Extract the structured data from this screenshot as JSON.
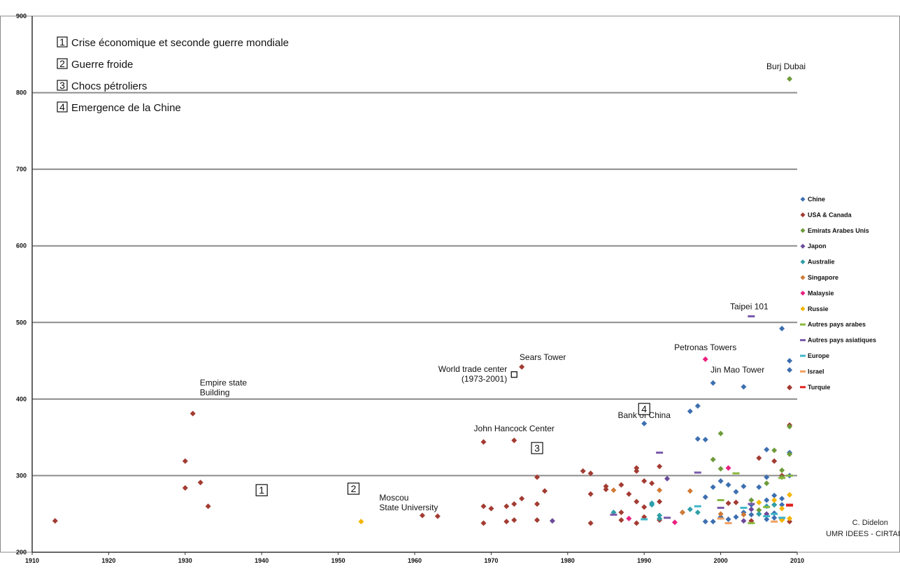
{
  "chart_data": {
    "type": "scatter",
    "xlim": [
      1910,
      2010
    ],
    "ylim": [
      200,
      900
    ],
    "x_ticks": [
      "1910",
      "1920",
      "1930",
      "1940",
      "1950",
      "1960",
      "1970",
      "1980",
      "1990",
      "2000",
      "2010"
    ],
    "y_ticks": [
      "200",
      "300",
      "400",
      "500",
      "600",
      "700",
      "800",
      "900"
    ],
    "grid": "horizontal",
    "legend_position": "right",
    "periods": [
      {
        "number": "1",
        "label": "Crise économique et seconde guerre mondiale",
        "x": 1940,
        "y": 281
      },
      {
        "number": "2",
        "label": "Guerre froide",
        "x": 1952,
        "y": 283
      },
      {
        "number": "3",
        "label": "Chocs pétroliers",
        "x": 1976,
        "y": 336
      },
      {
        "number": "4",
        "label": "Emergence de la Chine",
        "x": 1990,
        "y": 387
      }
    ],
    "series": [
      {
        "name": "Chine",
        "color": "#3d6fb0",
        "marker": "diamond",
        "points": [
          [
            1990,
            368
          ],
          [
            1996,
            384
          ],
          [
            1997,
            391
          ],
          [
            1997,
            348
          ],
          [
            1998,
            347
          ],
          [
            1999,
            421
          ],
          [
            2003,
            416
          ],
          [
            2008,
            492
          ],
          [
            2009,
            450
          ],
          [
            2009,
            438
          ],
          [
            2009,
            330
          ],
          [
            2009,
            300
          ],
          [
            1998,
            272
          ],
          [
            1999,
            285
          ],
          [
            2000,
            293
          ],
          [
            2001,
            288
          ],
          [
            2002,
            279
          ],
          [
            2003,
            286
          ],
          [
            2004,
            262
          ],
          [
            2005,
            285
          ],
          [
            2006,
            334
          ],
          [
            2006,
            298
          ],
          [
            2007,
            274
          ],
          [
            2008,
            270
          ],
          [
            2008,
            262
          ],
          [
            2005,
            250
          ],
          [
            2006,
            243
          ],
          [
            2007,
            245
          ],
          [
            2004,
            249
          ],
          [
            2003,
            252
          ],
          [
            2002,
            246
          ],
          [
            2001,
            243
          ],
          [
            2000,
            246
          ],
          [
            1999,
            240
          ],
          [
            1998,
            240
          ],
          [
            2006,
            268
          ],
          [
            2007,
            251
          ],
          [
            2008,
            243
          ]
        ]
      },
      {
        "name": "USA & Canada",
        "color": "#a23b32",
        "marker": "diamond",
        "points": [
          [
            1913,
            241
          ],
          [
            1930,
            319
          ],
          [
            1930,
            284
          ],
          [
            1931,
            381
          ],
          [
            1932,
            291
          ],
          [
            1933,
            260
          ],
          [
            1961,
            248
          ],
          [
            1963,
            247
          ],
          [
            1969,
            344
          ],
          [
            1969,
            260
          ],
          [
            1969,
            238
          ],
          [
            1970,
            257
          ],
          [
            1972,
            260
          ],
          [
            1972,
            240
          ],
          [
            1973,
            346
          ],
          [
            1973,
            263
          ],
          [
            1973,
            242
          ],
          [
            1974,
            442
          ],
          [
            1974,
            270
          ],
          [
            1976,
            298
          ],
          [
            1976,
            263
          ],
          [
            1976,
            242
          ],
          [
            1977,
            280
          ],
          [
            1982,
            306
          ],
          [
            1983,
            303
          ],
          [
            1983,
            276
          ],
          [
            1983,
            238
          ],
          [
            1985,
            286
          ],
          [
            1985,
            282
          ],
          [
            1987,
            288
          ],
          [
            1987,
            252
          ],
          [
            1987,
            242
          ],
          [
            1988,
            276
          ],
          [
            1989,
            310
          ],
          [
            1989,
            306
          ],
          [
            1989,
            266
          ],
          [
            1989,
            238
          ],
          [
            1990,
            293
          ],
          [
            1990,
            259
          ],
          [
            1990,
            246
          ],
          [
            1991,
            290
          ],
          [
            1992,
            312
          ],
          [
            1992,
            266
          ],
          [
            1992,
            242
          ],
          [
            2001,
            264
          ],
          [
            2002,
            265
          ],
          [
            2004,
            241
          ],
          [
            2005,
            323
          ],
          [
            2007,
            319
          ],
          [
            2008,
            300
          ],
          [
            2009,
            415
          ],
          [
            2009,
            366
          ],
          [
            2009,
            240
          ]
        ]
      },
      {
        "name": "Emirats Arabes Unis",
        "color": "#6e9b3a",
        "marker": "diamond",
        "points": [
          [
            2009,
            818
          ],
          [
            2000,
            355
          ],
          [
            1999,
            321
          ],
          [
            2000,
            309
          ],
          [
            2004,
            268
          ],
          [
            2006,
            290
          ],
          [
            2007,
            333
          ],
          [
            2008,
            307
          ],
          [
            2008,
            298
          ],
          [
            2009,
            364
          ],
          [
            2009,
            328
          ],
          [
            2005,
            255
          ],
          [
            2007,
            262
          ]
        ]
      },
      {
        "name": "Japon",
        "color": "#6a4a9a",
        "marker": "diamond",
        "points": [
          [
            1978,
            241
          ],
          [
            1993,
            296
          ],
          [
            1995,
            252
          ],
          [
            2003,
            241
          ],
          [
            2004,
            256
          ],
          [
            2006,
            250
          ]
        ]
      },
      {
        "name": "Australie",
        "color": "#2f9ea8",
        "marker": "diamond",
        "points": [
          [
            1986,
            252
          ],
          [
            1991,
            264
          ],
          [
            1991,
            262
          ],
          [
            1992,
            248
          ],
          [
            1992,
            244
          ],
          [
            1996,
            256
          ],
          [
            1997,
            252
          ],
          [
            2005,
            250
          ],
          [
            2006,
            260
          ],
          [
            2007,
            262
          ]
        ]
      },
      {
        "name": "Singapore",
        "color": "#d07a35",
        "marker": "diamond",
        "points": [
          [
            1986,
            281
          ],
          [
            1992,
            281
          ],
          [
            1995,
            252
          ],
          [
            1996,
            280
          ],
          [
            2000,
            250
          ],
          [
            2003,
            249
          ]
        ]
      },
      {
        "name": "Malaysie",
        "color": "#e8207e",
        "marker": "diamond",
        "points": [
          [
            1998,
            452
          ],
          [
            1988,
            244
          ],
          [
            1994,
            239
          ],
          [
            2001,
            310
          ]
        ]
      },
      {
        "name": "Russie",
        "color": "#f5b400",
        "marker": "diamond",
        "points": [
          [
            1953,
            240
          ],
          [
            2005,
            265
          ],
          [
            2007,
            268
          ],
          [
            2008,
            257
          ],
          [
            2009,
            275
          ],
          [
            2009,
            244
          ],
          [
            2008,
            242
          ]
        ]
      },
      {
        "name": "Autres pays arabes",
        "color": "#8ab840",
        "marker": "dash",
        "points": [
          [
            2000,
            268
          ],
          [
            2002,
            303
          ],
          [
            2004,
            238
          ],
          [
            2006,
            259
          ],
          [
            2008,
            297
          ],
          [
            2009,
            300
          ]
        ]
      },
      {
        "name": "Autres pays asiatiques",
        "color": "#7a5aaa",
        "marker": "dash",
        "points": [
          [
            2004,
            508
          ],
          [
            1992,
            330
          ],
          [
            1997,
            304
          ],
          [
            1986,
            249
          ],
          [
            1993,
            245
          ],
          [
            2000,
            258
          ],
          [
            2004,
            263
          ]
        ]
      },
      {
        "name": "Europe",
        "color": "#3fb6c8",
        "marker": "dash",
        "points": [
          [
            1997,
            260
          ],
          [
            2003,
            258
          ],
          [
            2006,
            247
          ],
          [
            2007,
            250
          ],
          [
            2008,
            245
          ],
          [
            1990,
            243
          ]
        ]
      },
      {
        "name": "Israel",
        "color": "#f0a060",
        "marker": "dash",
        "points": [
          [
            2000,
            244
          ],
          [
            2001,
            238
          ],
          [
            2007,
            240
          ]
        ]
      },
      {
        "name": "Turquie",
        "color": "#e02020",
        "marker": "dash",
        "points": [
          [
            2009,
            262
          ],
          [
            2009,
            261
          ]
        ]
      }
    ],
    "annotations": [
      {
        "text": [
          "Burj Dubai"
        ],
        "x": 2009,
        "y": 818
      },
      {
        "text": [
          "Taipei 101"
        ],
        "x": 2004,
        "y": 508
      },
      {
        "text": [
          "Petronas Towers"
        ],
        "x": 1998,
        "y": 452
      },
      {
        "text": [
          "Jin Mao Tower"
        ],
        "x": 1999,
        "y": 421
      },
      {
        "text": [
          "Sears Tower"
        ],
        "x": 1974,
        "y": 442
      },
      {
        "text": [
          "World trade center",
          "(1973-2001)"
        ],
        "x": 1973,
        "y": 432
      },
      {
        "text": [
          "Bank of China"
        ],
        "x": 1990,
        "y": 368
      },
      {
        "text": [
          "John Hancock Center"
        ],
        "x": 1973,
        "y": 346
      },
      {
        "text": [
          "Empire state",
          "Building"
        ],
        "x": 1931,
        "y": 381
      },
      {
        "text": [
          "Moscou",
          "State University"
        ],
        "x": 1953,
        "y": 240
      }
    ]
  },
  "credit": {
    "line1": "C. Didelon",
    "line2": "UMR IDEES - CIRTAI"
  }
}
